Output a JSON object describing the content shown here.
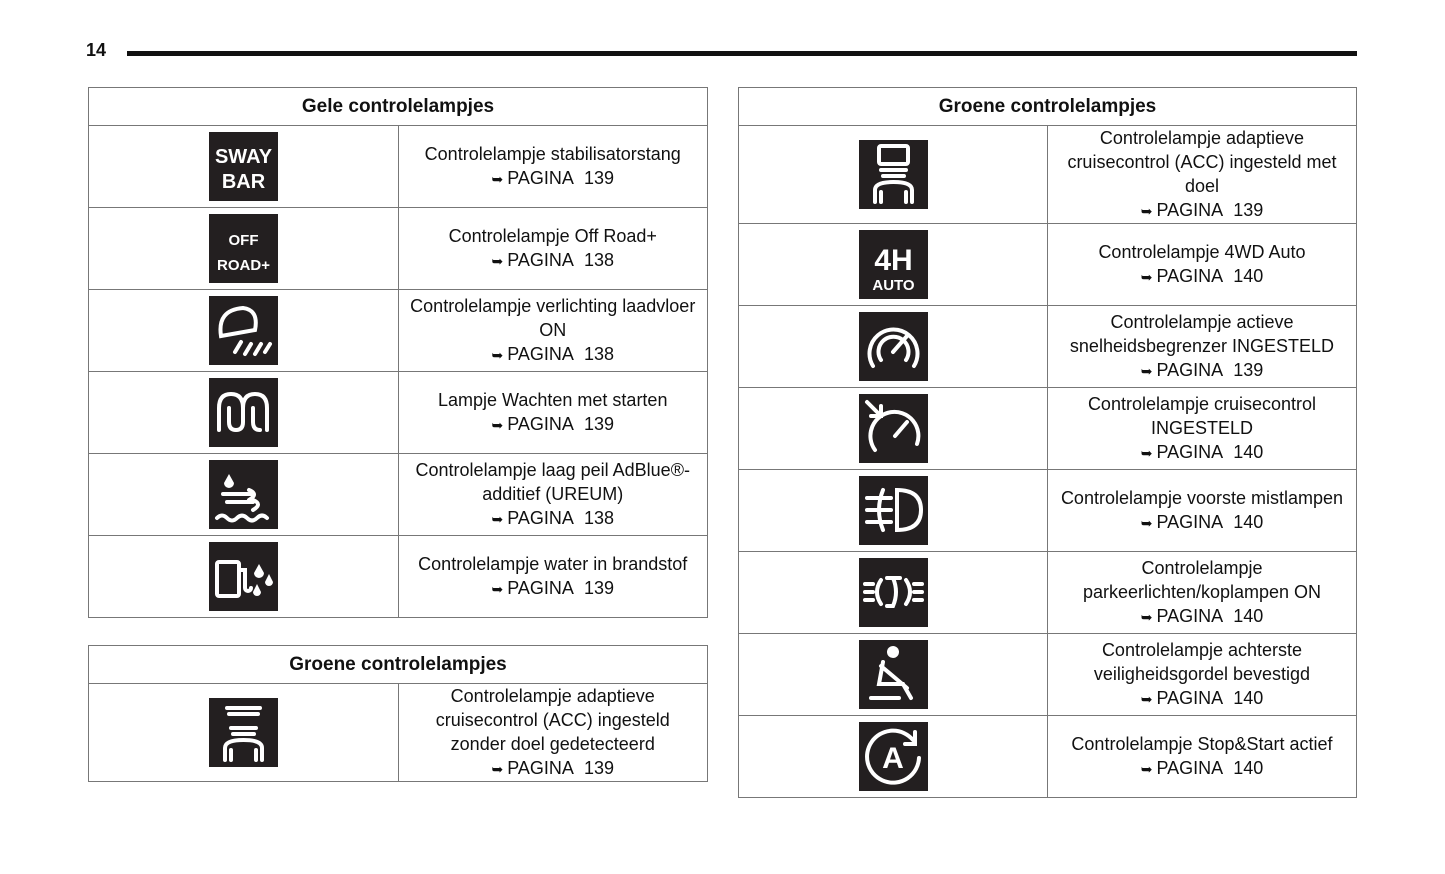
{
  "page_number": "14",
  "page_ref_prefix": "PAGINA",
  "tables": [
    {
      "title": "Gele controlelampjes",
      "rows": [
        {
          "icon": "sway-bar-icon",
          "icon_text": [
            "SWAY",
            "BAR"
          ],
          "label": "Controlelampje stabilisatorstang",
          "page": "139"
        },
        {
          "icon": "off-road-plus-icon",
          "icon_text": [
            "OFF",
            "ROAD+"
          ],
          "label": "Controlelampje Off Road+",
          "page": "138"
        },
        {
          "icon": "cargo-light-icon",
          "label": "Controlelampje verlichting laadvloer ON",
          "page": "138"
        },
        {
          "icon": "glow-plug-icon",
          "label": "Lampje Wachten met starten",
          "page": "139"
        },
        {
          "icon": "adblue-icon",
          "label": "Controlelampje laag peil AdBlue®-additief (UREUM)",
          "page": "138"
        },
        {
          "icon": "water-in-fuel-icon",
          "label": "Controlelampje water in brandstof",
          "page": "139"
        }
      ]
    },
    {
      "title": "Groene controlelampjes",
      "rows": [
        {
          "icon": "acc-no-target-icon",
          "label": "Controlelampje adaptieve cruisecontrol (ACC) ingesteld zonder doel gedetecteerd",
          "page": "139"
        }
      ]
    },
    {
      "title": "Groene controlelampjes",
      "rows": [
        {
          "icon": "acc-target-icon",
          "label": "Controlelampje adaptieve cruisecontrol (ACC) ingesteld met doel",
          "page": "139"
        },
        {
          "icon": "4h-auto-icon",
          "icon_text": [
            "4H",
            "AUTO"
          ],
          "label": "Controlelampje 4WD Auto",
          "page": "140"
        },
        {
          "icon": "speed-limiter-icon",
          "label": "Controlelampje actieve snelheidsbegrenzer INGESTELD",
          "page": "139"
        },
        {
          "icon": "cruise-control-icon",
          "label": "Controlelampje cruisecontrol INGESTELD",
          "page": "140"
        },
        {
          "icon": "front-fog-light-icon",
          "label": "Controlelampje voorste mistlampen",
          "page": "140"
        },
        {
          "icon": "parking-lights-icon",
          "label": "Controlelampje parkeerlichten/koplampen ON",
          "page": "140"
        },
        {
          "icon": "rear-seatbelt-icon",
          "label": "Controlelampje achterste veiligheidsgordel bevestigd",
          "page": "140"
        },
        {
          "icon": "stop-start-icon",
          "label": "Controlelampje Stop&Start actief",
          "page": "140"
        }
      ]
    }
  ]
}
